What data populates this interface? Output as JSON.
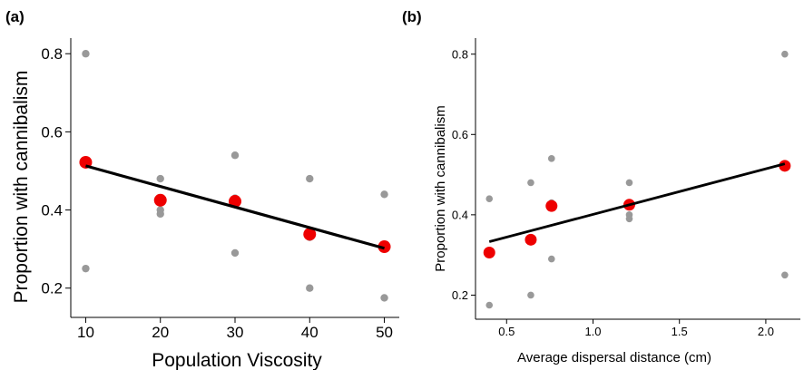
{
  "chart_data": [
    {
      "type": "scatter",
      "panel_label": "(a)",
      "xlabel": "Population Viscosity",
      "ylabel": "Proportion with cannibalism",
      "xlim": [
        8,
        52
      ],
      "ylim": [
        0.125,
        0.84
      ],
      "xticks": [
        10,
        20,
        30,
        40,
        50
      ],
      "yticks": [
        0.2,
        0.4,
        0.6,
        0.8
      ],
      "ytick_labels": [
        "0.2",
        "0.4",
        "0.6",
        "0.8"
      ],
      "grid": false,
      "series": [
        {
          "role": "observations",
          "color": "#999999",
          "points": [
            [
              10,
              0.8
            ],
            [
              10,
              0.52
            ],
            [
              10,
              0.25
            ],
            [
              20,
              0.48
            ],
            [
              20,
              0.4
            ],
            [
              20,
              0.39
            ],
            [
              30,
              0.54
            ],
            [
              30,
              0.43
            ],
            [
              30,
              0.29
            ],
            [
              40,
              0.48
            ],
            [
              40,
              0.33
            ],
            [
              40,
              0.2
            ],
            [
              50,
              0.44
            ],
            [
              50,
              0.175
            ]
          ]
        },
        {
          "role": "means",
          "color": "#ee0000",
          "points": [
            [
              10,
              0.522
            ],
            [
              20,
              0.425
            ],
            [
              30,
              0.422
            ],
            [
              40,
              0.338
            ],
            [
              50,
              0.306
            ]
          ]
        }
      ],
      "fit_line": {
        "color": "#000000",
        "from": [
          10,
          0.513
        ],
        "to": [
          50,
          0.302
        ]
      }
    },
    {
      "type": "scatter",
      "panel_label": "(b)",
      "xlabel": "Average dispersal distance (cm)",
      "ylabel": "Proportion with cannibalism",
      "xlim": [
        0.32,
        2.2
      ],
      "ylim": [
        0.14,
        0.84
      ],
      "xticks": [
        0.5,
        1.0,
        1.5,
        2.0
      ],
      "xtick_labels": [
        "0.5",
        "1.0",
        "1.5",
        "2.0"
      ],
      "yticks": [
        0.2,
        0.4,
        0.6,
        0.8
      ],
      "ytick_labels": [
        "0.2",
        "0.4",
        "0.6",
        "0.8"
      ],
      "grid": false,
      "series": [
        {
          "role": "observations",
          "color": "#999999",
          "points": [
            [
              0.4,
              0.44
            ],
            [
              0.4,
              0.175
            ],
            [
              0.64,
              0.48
            ],
            [
              0.64,
              0.333
            ],
            [
              0.64,
              0.2
            ],
            [
              0.76,
              0.54
            ],
            [
              0.76,
              0.43
            ],
            [
              0.76,
              0.29
            ],
            [
              1.21,
              0.48
            ],
            [
              1.21,
              0.4
            ],
            [
              1.21,
              0.39
            ],
            [
              2.11,
              0.8
            ],
            [
              2.11,
              0.52
            ],
            [
              2.11,
              0.25
            ]
          ]
        },
        {
          "role": "means",
          "color": "#ee0000",
          "points": [
            [
              0.4,
              0.306
            ],
            [
              0.64,
              0.338
            ],
            [
              0.76,
              0.422
            ],
            [
              1.21,
              0.425
            ],
            [
              2.11,
              0.522
            ]
          ]
        }
      ],
      "fit_line": {
        "color": "#000000",
        "from": [
          0.4,
          0.333
        ],
        "to": [
          2.11,
          0.527
        ]
      }
    }
  ]
}
